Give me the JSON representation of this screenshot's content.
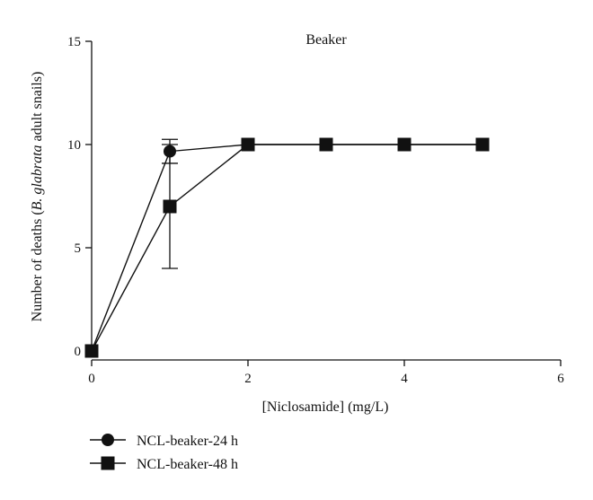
{
  "chart_data": {
    "type": "line",
    "title": "Beaker",
    "xlabel": "[Niclosamide] (mg/L)",
    "ylabel": {
      "prefix": "Number of deaths (",
      "italic": "B. glabrata",
      "suffix": " adult snails)"
    },
    "xlim": [
      0,
      6
    ],
    "ylim": [
      0,
      15
    ],
    "xticks": [
      "0",
      "2",
      "4",
      "6"
    ],
    "yticks": [
      "0",
      "5",
      "10",
      "15"
    ],
    "grid": false,
    "legend_position": "bottom-left",
    "series": [
      {
        "name": "NCL-beaker-24 h",
        "marker": "circle",
        "x": [
          0,
          1,
          2,
          3,
          4,
          5
        ],
        "y": [
          0,
          9.67,
          10,
          10,
          10,
          10
        ],
        "error": [
          0,
          0.58,
          0,
          0,
          0,
          0
        ]
      },
      {
        "name": "NCL-beaker-48 h",
        "marker": "square",
        "x": [
          0,
          1,
          2,
          3,
          4,
          5
        ],
        "y": [
          0,
          7,
          10,
          10,
          10,
          10
        ],
        "error": [
          0,
          3,
          0,
          0,
          0,
          0
        ]
      }
    ]
  },
  "colors": {
    "series": "#111111",
    "axis": "#111111"
  }
}
